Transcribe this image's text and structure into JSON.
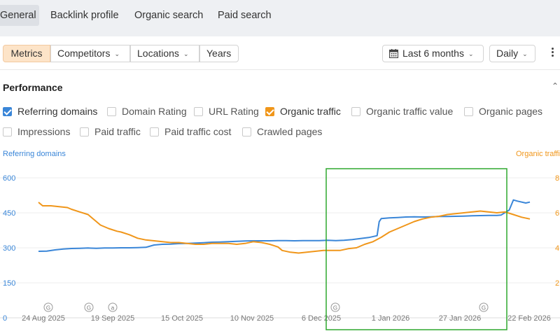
{
  "nav": {
    "tabs": [
      "General",
      "Backlink profile",
      "Organic search",
      "Paid search"
    ]
  },
  "toolbar": {
    "metrics": "Metrics",
    "competitors": "Competitors",
    "locations": "Locations",
    "years": "Years",
    "date_range": "Last 6 months",
    "interval": "Daily"
  },
  "performance": {
    "title": "Performance",
    "checkboxes": [
      {
        "label": "Referring domains",
        "checked": true,
        "color": "#3a86d8"
      },
      {
        "label": "Domain Rating",
        "checked": false
      },
      {
        "label": "URL Rating",
        "checked": false
      },
      {
        "label": "Organic traffic",
        "checked": true,
        "color": "#f0961a"
      },
      {
        "label": "Organic traffic value",
        "checked": false
      },
      {
        "label": "Organic pages",
        "checked": false
      },
      {
        "label": "Impressions",
        "checked": false
      },
      {
        "label": "Paid traffic",
        "checked": false
      },
      {
        "label": "Paid traffic cost",
        "checked": false
      },
      {
        "label": "Crawled pages",
        "checked": false
      }
    ]
  },
  "chart_data": {
    "type": "line",
    "ylabel": "Referring domains",
    "y2label": "Organic traffic",
    "y_ticks": [
      "600",
      "450",
      "300",
      "150",
      "0"
    ],
    "y2_ticks": [
      "8",
      "6",
      "4",
      "2"
    ],
    "ylim": [
      0,
      600
    ],
    "y2lim": [
      0,
      8
    ],
    "x_ticks": [
      "24 Aug 2025",
      "19 Sep 2025",
      "15 Oct 2025",
      "10 Nov 2025",
      "6 Dec 2025",
      "1 Jan 2026",
      "27 Jan 2026",
      "22 Feb 2026"
    ],
    "markers": [
      "G",
      "G",
      "a",
      "G",
      "G"
    ],
    "highlight_box": {
      "color": "#2ea82e"
    },
    "series": [
      {
        "name": "Referring domains",
        "color": "#3a86d8",
        "axis": "left",
        "points": [
          [
            0,
            285
          ],
          [
            4,
            286
          ],
          [
            8,
            291
          ],
          [
            12,
            295
          ],
          [
            16,
            297
          ],
          [
            20,
            298
          ],
          [
            24,
            299
          ],
          [
            28,
            298
          ],
          [
            32,
            299
          ],
          [
            36,
            299
          ],
          [
            40,
            300
          ],
          [
            44,
            300
          ],
          [
            48,
            301
          ],
          [
            52,
            302
          ],
          [
            56,
            312
          ],
          [
            60,
            315
          ],
          [
            64,
            316
          ],
          [
            68,
            318
          ],
          [
            72,
            319
          ],
          [
            76,
            320
          ],
          [
            80,
            322
          ],
          [
            84,
            324
          ],
          [
            88,
            325
          ],
          [
            92,
            326
          ],
          [
            96,
            328
          ],
          [
            100,
            329
          ],
          [
            104,
            330
          ],
          [
            108,
            330
          ],
          [
            112,
            330
          ],
          [
            116,
            331
          ],
          [
            120,
            331
          ],
          [
            124,
            330
          ],
          [
            128,
            331
          ],
          [
            132,
            331
          ],
          [
            136,
            331
          ],
          [
            140,
            332
          ],
          [
            144,
            331
          ],
          [
            148,
            332
          ],
          [
            152,
            335
          ],
          [
            156,
            340
          ],
          [
            160,
            344
          ],
          [
            164,
            352
          ],
          [
            165,
            412
          ],
          [
            166,
            425
          ],
          [
            170,
            428
          ],
          [
            174,
            430
          ],
          [
            178,
            432
          ],
          [
            182,
            433
          ],
          [
            186,
            432
          ],
          [
            190,
            433
          ],
          [
            194,
            434
          ],
          [
            198,
            434
          ],
          [
            202,
            435
          ],
          [
            206,
            436
          ],
          [
            210,
            437
          ],
          [
            214,
            438
          ],
          [
            218,
            439
          ],
          [
            222,
            439
          ],
          [
            224,
            440
          ],
          [
            228,
            462
          ],
          [
            230,
            505
          ],
          [
            232,
            500
          ],
          [
            236,
            492
          ],
          [
            238,
            496
          ]
        ]
      },
      {
        "name": "Organic traffic",
        "color": "#f0961a",
        "axis": "right",
        "points": [
          [
            0,
            6.6
          ],
          [
            2,
            6.4
          ],
          [
            6,
            6.4
          ],
          [
            10,
            6.35
          ],
          [
            14,
            6.3
          ],
          [
            16,
            6.2
          ],
          [
            20,
            6.05
          ],
          [
            24,
            5.9
          ],
          [
            28,
            5.5
          ],
          [
            30,
            5.3
          ],
          [
            34,
            5.1
          ],
          [
            38,
            4.95
          ],
          [
            40,
            4.9
          ],
          [
            44,
            4.75
          ],
          [
            48,
            4.55
          ],
          [
            52,
            4.45
          ],
          [
            56,
            4.4
          ],
          [
            60,
            4.35
          ],
          [
            64,
            4.3
          ],
          [
            68,
            4.3
          ],
          [
            72,
            4.25
          ],
          [
            76,
            4.2
          ],
          [
            80,
            4.2
          ],
          [
            84,
            4.25
          ],
          [
            88,
            4.25
          ],
          [
            92,
            4.25
          ],
          [
            96,
            4.2
          ],
          [
            100,
            4.25
          ],
          [
            104,
            4.35
          ],
          [
            108,
            4.3
          ],
          [
            112,
            4.2
          ],
          [
            116,
            4.05
          ],
          [
            118,
            3.85
          ],
          [
            122,
            3.75
          ],
          [
            126,
            3.7
          ],
          [
            130,
            3.75
          ],
          [
            134,
            3.8
          ],
          [
            138,
            3.85
          ],
          [
            142,
            3.85
          ],
          [
            146,
            3.85
          ],
          [
            150,
            3.95
          ],
          [
            154,
            4.0
          ],
          [
            158,
            4.2
          ],
          [
            162,
            4.35
          ],
          [
            166,
            4.6
          ],
          [
            170,
            4.9
          ],
          [
            174,
            5.1
          ],
          [
            178,
            5.3
          ],
          [
            182,
            5.5
          ],
          [
            186,
            5.65
          ],
          [
            190,
            5.75
          ],
          [
            194,
            5.8
          ],
          [
            198,
            5.9
          ],
          [
            202,
            5.95
          ],
          [
            206,
            6.0
          ],
          [
            210,
            6.05
          ],
          [
            214,
            6.1
          ],
          [
            218,
            6.05
          ],
          [
            222,
            6.0
          ],
          [
            226,
            6.05
          ],
          [
            230,
            5.9
          ],
          [
            234,
            5.75
          ],
          [
            238,
            5.65
          ]
        ]
      }
    ]
  }
}
